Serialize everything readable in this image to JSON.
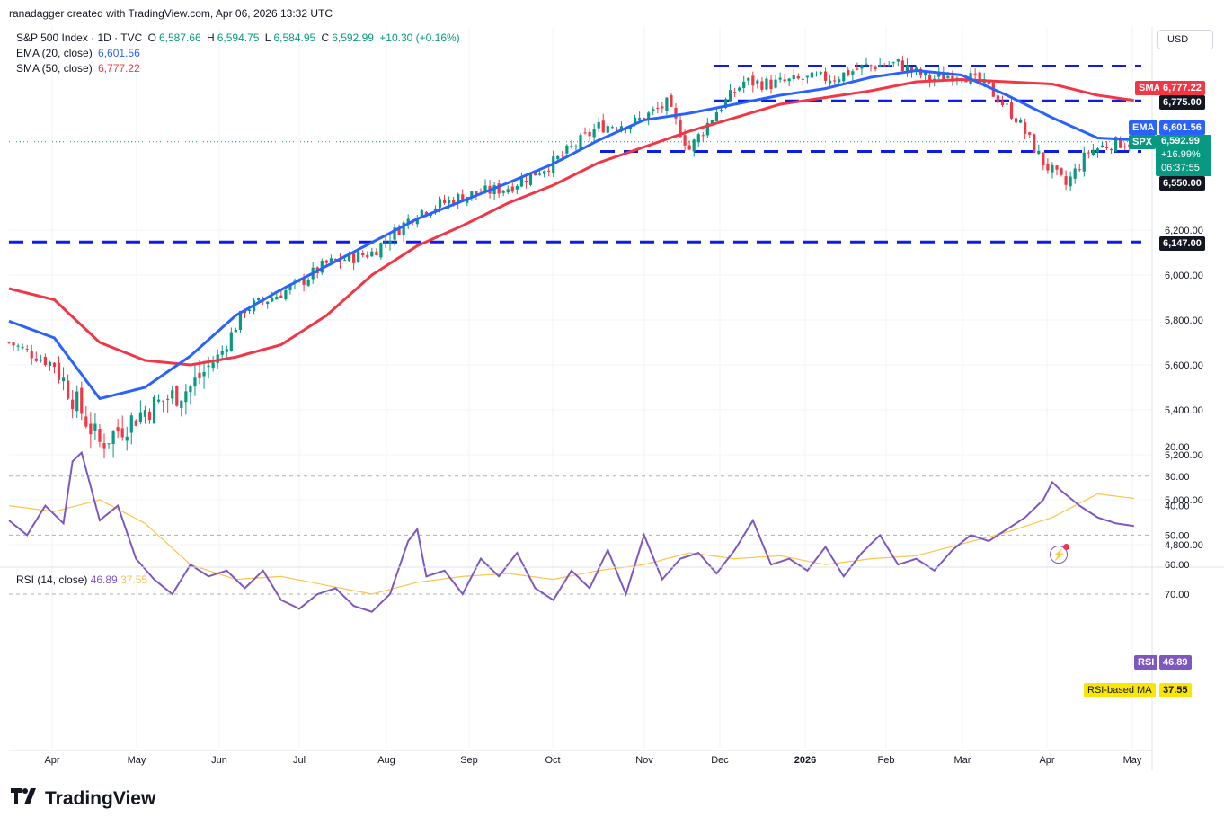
{
  "header": {
    "attribution": "ranadagger created with TradingView.com, Apr 06, 2026 13:32 UTC"
  },
  "legend": {
    "symbol": "S&P 500 Index · 1D · TVC",
    "open_label": "O",
    "open": "6,587.66",
    "high_label": "H",
    "high": "6,594.75",
    "low_label": "L",
    "low": "6,584.95",
    "close_label": "C",
    "close": "6,592.99",
    "change": "+10.30 (+0.16%)",
    "ema_label": "EMA (20, close)",
    "ema_value": "6,601.56",
    "sma_label": "SMA (50, close)",
    "sma_value": "6,777.22"
  },
  "rsi_legend": {
    "label": "RSI (14, close)",
    "value": "46.89",
    "ma_value": "37.55"
  },
  "currency": "USD",
  "price_tags": {
    "sma_name": "SMA:MA",
    "sma_value": "6,777.22",
    "level_top": "6,775.00",
    "ema_name": "EMA",
    "ema_value": "6,601.56",
    "spx_name": "SPX",
    "spx_value": "6,592.99",
    "spx_change": "+16.99%",
    "spx_countdown": "06:37:55",
    "level_mid": "6,550.00",
    "level_low": "6,147.00",
    "rsi_name": "RSI",
    "rsi_value": "46.89",
    "rsi_ma_name": "RSI-based MA",
    "rsi_ma_value": "37.55"
  },
  "footer": {
    "brand": "TradingView"
  },
  "colors": {
    "up": "#089981",
    "down": "#f23645",
    "ema": "#2962ff",
    "sma": "#f23645",
    "rsi": "#7e57c2",
    "rsi_ma": "#f7c548",
    "level": "#0d1ce6"
  },
  "chart_data": [
    {
      "type": "candlestick",
      "title": "S&P 500 Index · 1D · TVC",
      "x_tick_labels": [
        "Apr",
        "May",
        "Jun",
        "Jul",
        "Aug",
        "Sep",
        "Oct",
        "Nov",
        "Dec",
        "2026",
        "Feb",
        "Mar",
        "Apr",
        "May"
      ],
      "y_tick_labels": [
        "6,200.00",
        "6,000.00",
        "5,800.00",
        "5,600.00",
        "5,400.00",
        "5,200.00",
        "5,000.00",
        "4,800.00"
      ],
      "ylim": [
        4700,
        7000
      ],
      "horizontal_levels": [
        6147,
        6550,
        6775,
        6930
      ],
      "series": [
        {
          "name": "SPX close (approx.)",
          "x": [
            0,
            10,
            20,
            30,
            40,
            47,
            52,
            58,
            63,
            70,
            80,
            90,
            100,
            110,
            120,
            130,
            138,
            145,
            150,
            156,
            162,
            168,
            175,
            182,
            189,
            196,
            203,
            210,
            216,
            222,
            228,
            233,
            238,
            243,
            248
          ],
          "values": [
            5700,
            5600,
            5250,
            5400,
            5500,
            5660,
            5850,
            5900,
            5950,
            6050,
            6100,
            6280,
            6350,
            6390,
            6500,
            6660,
            6680,
            6760,
            6560,
            6730,
            6860,
            6850,
            6870,
            6880,
            6930,
            6940,
            6870,
            6900,
            6830,
            6700,
            6500,
            6400,
            6550,
            6585,
            6593
          ]
        },
        {
          "name": "EMA (20, close)",
          "x": [
            0,
            10,
            20,
            30,
            40,
            50,
            60,
            70,
            80,
            90,
            100,
            110,
            120,
            130,
            140,
            150,
            160,
            170,
            180,
            190,
            200,
            210,
            220,
            230,
            240,
            248
          ],
          "values": [
            5795,
            5720,
            5450,
            5500,
            5640,
            5820,
            5935,
            6040,
            6145,
            6250,
            6330,
            6410,
            6495,
            6600,
            6690,
            6720,
            6760,
            6800,
            6830,
            6880,
            6910,
            6890,
            6800,
            6700,
            6610,
            6601.56
          ]
        },
        {
          "name": "SMA (50, close)",
          "x": [
            0,
            10,
            20,
            30,
            40,
            50,
            60,
            70,
            80,
            90,
            100,
            110,
            120,
            130,
            140,
            150,
            160,
            170,
            180,
            190,
            200,
            210,
            220,
            230,
            240,
            248
          ],
          "values": [
            5940,
            5890,
            5700,
            5620,
            5600,
            5635,
            5690,
            5820,
            6000,
            6130,
            6220,
            6320,
            6400,
            6500,
            6570,
            6640,
            6700,
            6760,
            6790,
            6820,
            6860,
            6870,
            6860,
            6850,
            6800,
            6777.22
          ]
        }
      ]
    },
    {
      "type": "line",
      "title": "RSI (14, close)",
      "y_tick_labels": [
        "70.00",
        "60.00",
        "50.00",
        "40.00",
        "30.00",
        "20.00"
      ],
      "ylim": [
        17,
        75
      ],
      "bands": [
        30,
        50,
        70
      ],
      "series": [
        {
          "name": "RSI",
          "x": [
            0,
            4,
            8,
            12,
            14,
            16,
            20,
            24,
            28,
            32,
            36,
            40,
            44,
            48,
            52,
            56,
            60,
            64,
            68,
            72,
            76,
            80,
            84,
            88,
            90,
            92,
            96,
            100,
            104,
            108,
            112,
            116,
            120,
            124,
            128,
            132,
            136,
            140,
            144,
            148,
            152,
            156,
            160,
            164,
            168,
            172,
            176,
            180,
            184,
            188,
            192,
            196,
            200,
            204,
            208,
            212,
            216,
            220,
            224,
            228,
            230,
            232,
            236,
            240,
            244,
            248
          ],
          "values": [
            45,
            50,
            40,
            46,
            25,
            22,
            45,
            40,
            58,
            65,
            70,
            60,
            64,
            62,
            68,
            62,
            72,
            75,
            70,
            68,
            74,
            76,
            70,
            52,
            48,
            64,
            62,
            70,
            58,
            64,
            56,
            68,
            72,
            62,
            68,
            55,
            70,
            50,
            65,
            58,
            56,
            63,
            55,
            45,
            60,
            58,
            62,
            54,
            64,
            56,
            50,
            60,
            58,
            62,
            55,
            50,
            52,
            48,
            44,
            38,
            32,
            35,
            40,
            44,
            46,
            46.89
          ]
        },
        {
          "name": "RSI-based MA",
          "x": [
            0,
            10,
            20,
            30,
            40,
            50,
            60,
            70,
            80,
            90,
            100,
            110,
            120,
            130,
            140,
            150,
            160,
            170,
            180,
            190,
            200,
            210,
            220,
            230,
            240,
            248
          ],
          "values": [
            40,
            42,
            38,
            46,
            60,
            65,
            64,
            67,
            70,
            66,
            64,
            63,
            65,
            62,
            60,
            56,
            58,
            57,
            60,
            58,
            57,
            53,
            49,
            44,
            36,
            37.55
          ]
        }
      ]
    }
  ]
}
